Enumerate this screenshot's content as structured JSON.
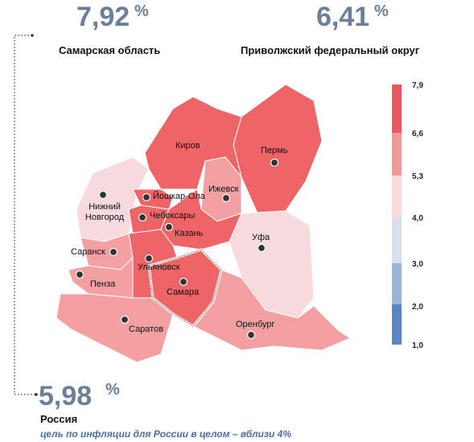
{
  "stats": [
    {
      "value": "7,92",
      "unit": "%",
      "label": "Самарская область"
    },
    {
      "value": "6,41",
      "unit": "%",
      "label": "Приволжский федеральный округ"
    }
  ],
  "russia": {
    "value": "5,98",
    "unit": "%",
    "label": "Россия",
    "note": "цель по инфляции для России в целом – вблизи 4%"
  },
  "legend": {
    "ticks": [
      "7,9",
      "6,6",
      "5,3",
      "4,0",
      "3,0",
      "2,0",
      "1,0"
    ]
  },
  "cities": [
    "Киров",
    "Пермь",
    "Ижевск",
    "Йошкар-Ола",
    "Чебоксары",
    "Казань",
    "Нижний Новгород",
    "Уфа",
    "Саранск",
    "Ульяновск",
    "Пенза",
    "Самара",
    "Саратов",
    "Оренбург"
  ]
}
